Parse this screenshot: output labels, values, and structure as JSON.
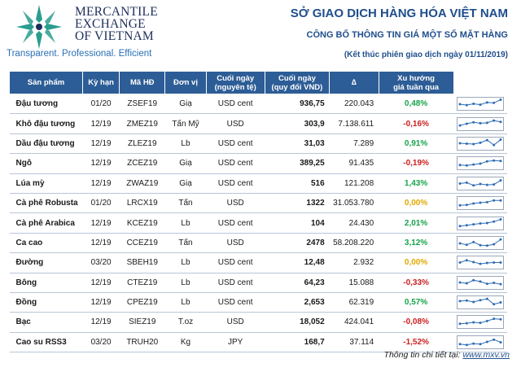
{
  "logo": {
    "line1": "MERCANTILE",
    "line2": "EXCHANGE",
    "line3": "OF VIETNAM",
    "tagline": "Transparent. Professional. Efficient"
  },
  "header": {
    "title": "SỞ GIAO DỊCH HÀNG HÓA VIỆT NAM",
    "subtitle": "CÔNG BỐ THÔNG TIN GIÁ MỘT SỐ MẶT HÀNG",
    "session": "(Kết thúc phiên giao dịch ngày 01/11/2019)"
  },
  "table": {
    "headers": {
      "product": "Sản phẩm",
      "term": "Kỳ hạn",
      "code": "Mã HĐ",
      "unit": "Đơn vị",
      "close_l1": "Cuối ngày",
      "close_l2": "(nguyên tệ)",
      "vnd_l1": "Cuối ngày",
      "vnd_l2": "(quy đổi VND)",
      "change": "∆",
      "trend_l1": "Xu hướng",
      "trend_l2": "giá tuần qua"
    },
    "rows": [
      {
        "product": "Đậu tương",
        "term": "01/20",
        "code": "ZSEF19",
        "unit": "Giạ",
        "currency": "USD cent",
        "close": "936,75",
        "vnd": "220.043",
        "change": "0,48%",
        "dir": "pos",
        "trend": [
          0.45,
          0.35,
          0.5,
          0.4,
          0.65,
          0.6,
          0.95
        ]
      },
      {
        "product": "Khô đậu tương",
        "term": "12/19",
        "code": "ZMEZ19",
        "unit": "Tấn Mỹ",
        "currency": "USD",
        "close": "303,9",
        "vnd": "7.138.611",
        "change": "-0,16%",
        "dir": "neg",
        "trend": [
          0.35,
          0.55,
          0.7,
          0.6,
          0.65,
          0.9,
          0.75
        ]
      },
      {
        "product": "Dầu đậu tương",
        "term": "12/19",
        "code": "ZLEZ19",
        "unit": "Lb",
        "currency": "USD cent",
        "close": "31,03",
        "vnd": "7.289",
        "change": "0,91%",
        "dir": "pos",
        "trend": [
          0.55,
          0.5,
          0.45,
          0.6,
          0.9,
          0.35,
          0.95
        ]
      },
      {
        "product": "Ngô",
        "term": "12/19",
        "code": "ZCEZ19",
        "unit": "Giạ",
        "currency": "USD cent",
        "close": "389,25",
        "vnd": "91.435",
        "change": "-0,19%",
        "dir": "neg",
        "trend": [
          0.3,
          0.25,
          0.35,
          0.45,
          0.7,
          0.8,
          0.75
        ]
      },
      {
        "product": "Lúa mỳ",
        "term": "12/19",
        "code": "ZWAZ19",
        "unit": "Giạ",
        "currency": "USD cent",
        "close": "516",
        "vnd": "121.208",
        "change": "1,43%",
        "dir": "pos",
        "trend": [
          0.5,
          0.6,
          0.3,
          0.45,
          0.35,
          0.4,
          0.85
        ]
      },
      {
        "product": "Cà phê Robusta",
        "term": "01/20",
        "code": "LRCX19",
        "unit": "Tấn",
        "currency": "USD",
        "close": "1322",
        "vnd": "31.053.780",
        "change": "0,00%",
        "dir": "zero",
        "trend": [
          0.25,
          0.3,
          0.45,
          0.55,
          0.6,
          0.8,
          0.8
        ]
      },
      {
        "product": "Cà phê Arabica",
        "term": "12/19",
        "code": "KCEZ19",
        "unit": "Lb",
        "currency": "USD cent",
        "close": "104",
        "vnd": "24.430",
        "change": "2,01%",
        "dir": "pos",
        "trend": [
          0.2,
          0.3,
          0.4,
          0.5,
          0.55,
          0.7,
          0.95
        ]
      },
      {
        "product": "Ca cao",
        "term": "12/19",
        "code": "CCEZ19",
        "unit": "Tấn",
        "currency": "USD",
        "close": "2478",
        "vnd": "58.208.220",
        "change": "3,12%",
        "dir": "pos",
        "trend": [
          0.45,
          0.3,
          0.6,
          0.25,
          0.2,
          0.35,
          0.9
        ]
      },
      {
        "product": "Đường",
        "term": "03/20",
        "code": "SBEH19",
        "unit": "Lb",
        "currency": "USD cent",
        "close": "12,48",
        "vnd": "2.932",
        "change": "0,00%",
        "dir": "zero",
        "trend": [
          0.5,
          0.75,
          0.55,
          0.35,
          0.45,
          0.5,
          0.5
        ]
      },
      {
        "product": "Bông",
        "term": "12/19",
        "code": "CTEZ19",
        "unit": "Lb",
        "currency": "USD cent",
        "close": "64,23",
        "vnd": "15.088",
        "change": "-0,33%",
        "dir": "neg",
        "trend": [
          0.55,
          0.45,
          0.8,
          0.65,
          0.4,
          0.5,
          0.35
        ]
      },
      {
        "product": "Đồng",
        "term": "12/19",
        "code": "CPEZ19",
        "unit": "Lb",
        "currency": "USD cent",
        "close": "2,653",
        "vnd": "62.319",
        "change": "0,57%",
        "dir": "pos",
        "trend": [
          0.65,
          0.7,
          0.55,
          0.75,
          0.9,
          0.3,
          0.5
        ]
      },
      {
        "product": "Bạc",
        "term": "12/19",
        "code": "SIEZ19",
        "unit": "T.oz",
        "currency": "USD",
        "close": "18,052",
        "vnd": "424.041",
        "change": "-0,08%",
        "dir": "neg",
        "trend": [
          0.3,
          0.35,
          0.45,
          0.4,
          0.6,
          0.85,
          0.8
        ]
      },
      {
        "product": "Cao su RSS3",
        "term": "03/20",
        "code": "TRUH20",
        "unit": "Kg",
        "currency": "JPY",
        "close": "168,7",
        "vnd": "37.114",
        "change": "-1,52%",
        "dir": "neg",
        "trend": [
          0.3,
          0.2,
          0.35,
          0.3,
          0.55,
          0.8,
          0.5
        ]
      }
    ]
  },
  "footer": {
    "label": "Thông tin chi tiết tại:",
    "link": "www.mxv.vn"
  },
  "colors": {
    "header_bg": "#2d5d96",
    "positive": "#16a34a",
    "negative": "#cc1f1f",
    "unchanged": "#e0a800",
    "sparkline": "#2f6db5"
  }
}
